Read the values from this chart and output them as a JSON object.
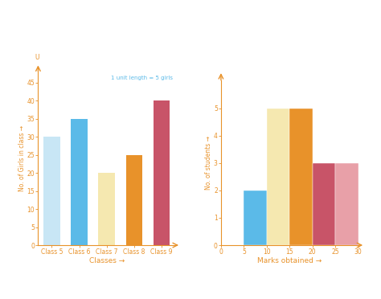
{
  "bar_chart": {
    "categories": [
      "Class 5",
      "Class 6",
      "Class 7",
      "Class 8",
      "Class 9"
    ],
    "values": [
      30,
      35,
      20,
      25,
      40
    ],
    "colors": [
      "#c8e6f5",
      "#5bbae8",
      "#f5e8b0",
      "#e8922a",
      "#c85468"
    ],
    "xlabel": "Classes →",
    "ylabel": "No. of Girls in class →",
    "ylim": [
      0,
      48
    ],
    "yticks": [
      0,
      5,
      10,
      15,
      20,
      25,
      30,
      35,
      40,
      45
    ],
    "note": "1 unit length = 5 girls",
    "note_color": "#5bbae8",
    "axis_color": "#e8922a",
    "tick_color": "#e8922a",
    "label_color": "#e8922a",
    "u_label": "U"
  },
  "histogram": {
    "bin_edges": [
      0,
      5,
      10,
      15,
      20,
      25,
      30
    ],
    "values": [
      0,
      2,
      5,
      5,
      3,
      3
    ],
    "colors": [
      "#ffffff",
      "#5bbae8",
      "#f5e8b0",
      "#e8922a",
      "#c85468",
      "#e8a0a8"
    ],
    "bar_bin_starts": [
      0,
      5,
      10,
      15,
      20,
      25
    ],
    "xlabel": "Marks obtained →",
    "ylabel": "No. of students →",
    "ylim": [
      0,
      6
    ],
    "yticks": [
      0,
      1,
      2,
      3,
      4,
      5
    ],
    "xticks": [
      0,
      5,
      10,
      15,
      20,
      25,
      30
    ],
    "axis_color": "#e8922a",
    "tick_color": "#e8922a",
    "label_color": "#e8922a",
    "u_label": ""
  },
  "background_color": "#ffffff",
  "font_size": 5.5,
  "label_fontsize": 6.5
}
